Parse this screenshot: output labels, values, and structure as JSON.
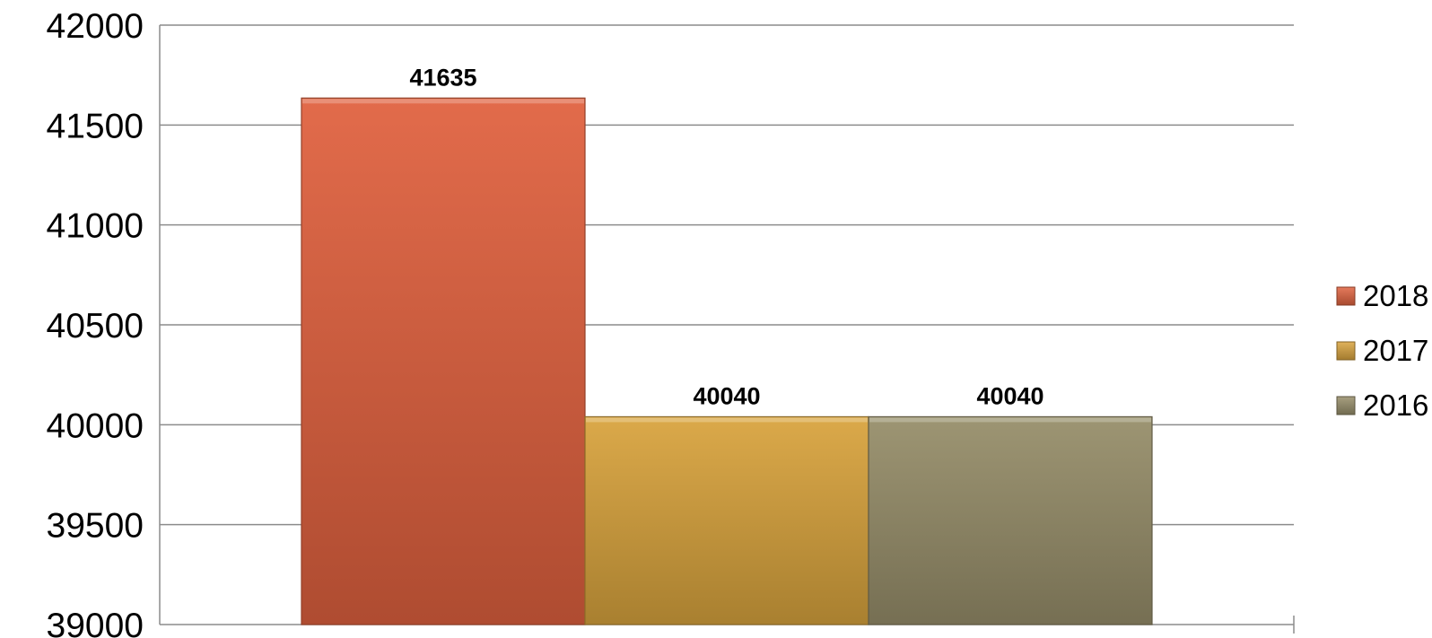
{
  "chart_data": {
    "type": "bar",
    "categories": [
      ""
    ],
    "series": [
      {
        "name": "2018",
        "values": [
          41635
        ],
        "color": "#e0623f"
      },
      {
        "name": "2017",
        "values": [
          40040
        ],
        "color": "#d9a43e"
      },
      {
        "name": "2016",
        "values": [
          40040
        ],
        "color": "#978e6a"
      }
    ],
    "ylim": [
      39000,
      42000
    ],
    "yticks": [
      "39000",
      "39500",
      "40000",
      "40500",
      "41000",
      "41500",
      "42000"
    ],
    "data_labels": [
      "41635",
      "40040",
      "40040"
    ],
    "title": "",
    "xlabel": "",
    "ylabel": "",
    "grid": true,
    "legend": {
      "position": "right",
      "entries": [
        "2018",
        "2017",
        "2016"
      ]
    }
  }
}
